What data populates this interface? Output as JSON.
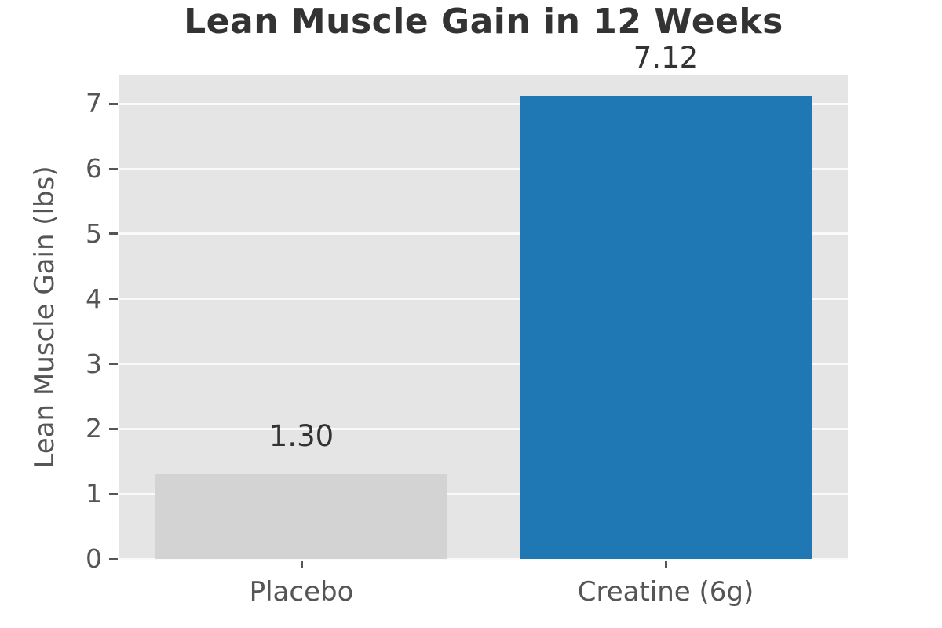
{
  "chart_data": {
    "type": "bar",
    "title": "Lean Muscle Gain in 12 Weeks",
    "xlabel": "",
    "ylabel": "Lean Muscle Gain (lbs)",
    "categories": [
      "Placebo",
      "Creatine (6g)"
    ],
    "values": [
      1.3,
      7.12
    ],
    "bar_labels": [
      "1.30",
      "7.12"
    ],
    "bar_colors": [
      "#d3d3d3",
      "#1f77b4"
    ],
    "yticks": [
      0,
      1,
      2,
      3,
      4,
      5,
      6,
      7
    ],
    "ylim": [
      0,
      7.45
    ],
    "grid": true,
    "legend_position": "none",
    "style": {
      "plot_background": "#e5e5e5",
      "figure_background": "#ffffff",
      "gridline_color": "#fafafa",
      "tick_text_color": "#555555",
      "title_color": "#333333",
      "value_label_color": "#333333"
    }
  }
}
